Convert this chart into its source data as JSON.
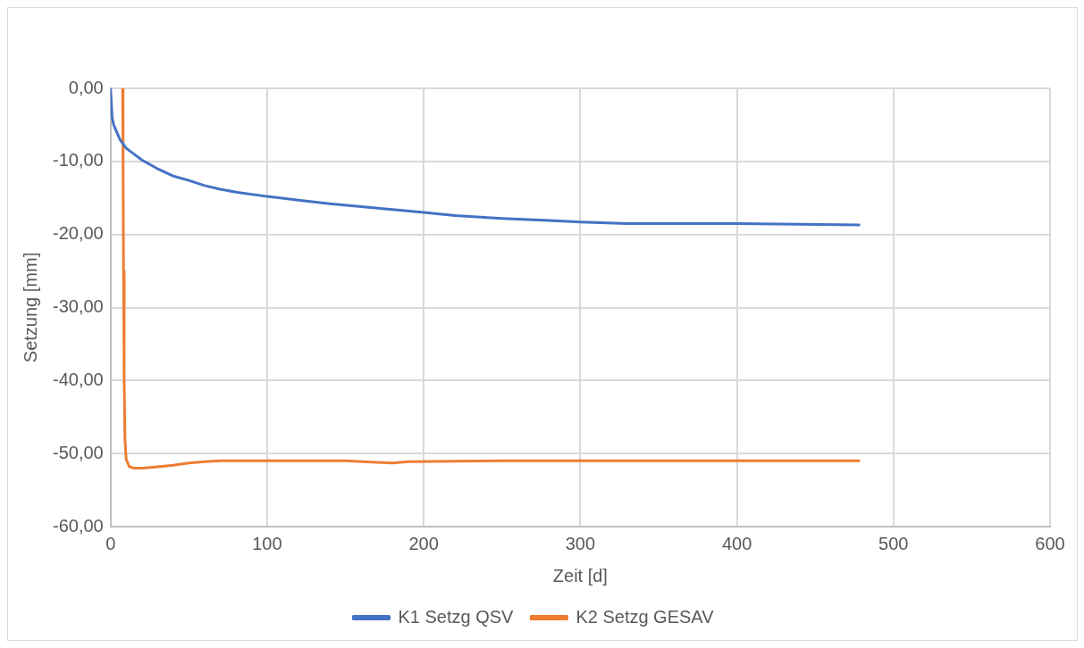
{
  "chart_data": {
    "type": "line",
    "xlabel": "Zeit [d]",
    "ylabel": "Setzung [mm]",
    "xlim": [
      0,
      600
    ],
    "xticks": [
      0,
      100,
      200,
      300,
      400,
      500,
      600
    ],
    "ylim": [
      -60,
      0
    ],
    "yticks": [
      {
        "value": 0,
        "label": "0,00"
      },
      {
        "value": -10,
        "label": "-10,00"
      },
      {
        "value": -20,
        "label": "-20,00"
      },
      {
        "value": -30,
        "label": "-30,00"
      },
      {
        "value": -40,
        "label": "-40,00"
      },
      {
        "value": -50,
        "label": "-50,00"
      },
      {
        "value": -60,
        "label": "-60,00"
      }
    ],
    "grid": true,
    "legend": "bottom",
    "marker": "none",
    "line_style": "solid",
    "series": [
      {
        "name": "K1 Setzg QSV",
        "color": "#4472c4",
        "x": [
          0,
          0.5,
          1,
          2,
          4,
          6,
          10,
          15,
          20,
          30,
          40,
          50,
          60,
          70,
          80,
          100,
          120,
          140,
          160,
          180,
          200,
          220,
          250,
          280,
          300,
          330,
          360,
          400,
          440,
          478
        ],
        "values": [
          0,
          -2,
          -4,
          -5,
          -6,
          -7,
          -8.2,
          -9,
          -9.8,
          -11,
          -12,
          -12.6,
          -13.3,
          -13.8,
          -14.2,
          -14.8,
          -15.3,
          -15.8,
          -16.2,
          -16.6,
          -17,
          -17.4,
          -17.8,
          -18.1,
          -18.3,
          -18.5,
          -18.5,
          -18.5,
          -18.6,
          -18.7
        ]
      },
      {
        "name": "K2 Setzg GESAV",
        "color": "#ed7d31",
        "x": [
          7.7,
          8,
          8.3,
          8.7,
          9.2,
          10,
          12,
          15,
          20,
          30,
          40,
          50,
          60,
          70,
          100,
          150,
          170,
          180,
          190,
          250,
          300,
          400,
          478
        ],
        "values": [
          0,
          -10,
          -25,
          -40,
          -48,
          -50.8,
          -51.8,
          -52,
          -52,
          -51.8,
          -51.6,
          -51.3,
          -51.1,
          -51,
          -51,
          -51,
          -51.2,
          -51.3,
          -51.1,
          -51,
          -51,
          -51,
          -51
        ]
      }
    ]
  }
}
